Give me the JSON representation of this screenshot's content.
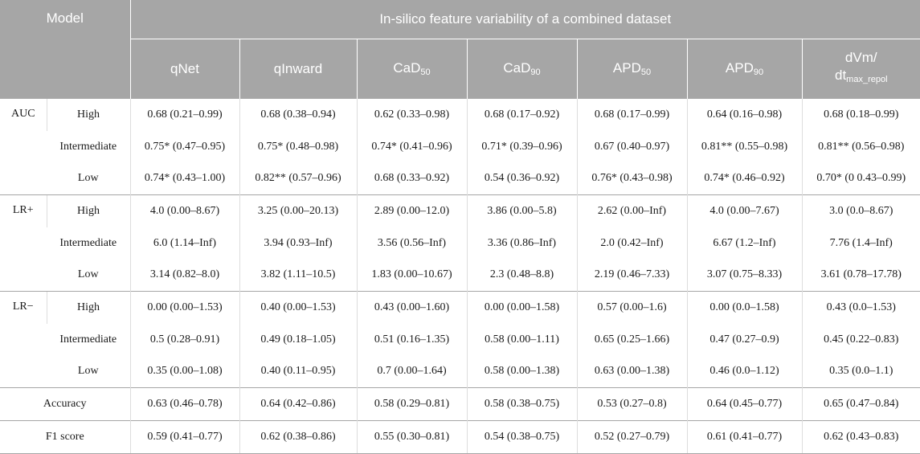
{
  "header": {
    "model": "Model",
    "title": "In-silico feature variability of a combined dataset",
    "columns": [
      {
        "main": "qNet",
        "sub": ""
      },
      {
        "main": "qInward",
        "sub": ""
      },
      {
        "main": "CaD",
        "sub": "50"
      },
      {
        "main": "CaD",
        "sub": "90"
      },
      {
        "main": "APD",
        "sub": "50"
      },
      {
        "main": "APD",
        "sub": "90"
      },
      {
        "main": "dVm/",
        "line2": "dt",
        "sub": "max_repol"
      }
    ]
  },
  "groups": [
    {
      "label": "AUC",
      "rows": [
        {
          "label": "High",
          "cells": [
            "0.68 (0.21–0.99)",
            "0.68 (0.38–0.94)",
            "0.62 (0.33–0.98)",
            "0.68 (0.17–0.92)",
            "0.68 (0.17–0.99)",
            "0.64 (0.16–0.98)",
            "0.68 (0.18–0.99)"
          ]
        },
        {
          "label": "Intermediate",
          "cells": [
            "0.75* (0.47–0.95)",
            "0.75* (0.48–0.98)",
            "0.74* (0.41–0.96)",
            "0.71* (0.39–0.96)",
            "0.67 (0.40–0.97)",
            "0.81** (0.55–0.98)",
            "0.81** (0.56–0.98)"
          ]
        },
        {
          "label": "Low",
          "cells": [
            "0.74* (0.43–1.00)",
            "0.82** (0.57–0.96)",
            "0.68 (0.33–0.92)",
            "0.54 (0.36–0.92)",
            "0.76* (0.43–0.98)",
            "0.74* (0.46–0.92)",
            "0.70* (0 0.43–0.99)"
          ]
        }
      ]
    },
    {
      "label": "LR+",
      "rows": [
        {
          "label": "High",
          "cells": [
            "4.0 (0.00–8.67)",
            "3.25 (0.00–20.13)",
            "2.89 (0.00–12.0)",
            "3.86 (0.00–5.8)",
            "2.62 (0.00–Inf)",
            "4.0 (0.00–7.67)",
            "3.0 (0.0–8.67)"
          ]
        },
        {
          "label": "Intermediate",
          "cells": [
            "6.0 (1.14–Inf)",
            "3.94 (0.93–Inf)",
            "3.56 (0.56–Inf)",
            "3.36 (0.86–Inf)",
            "2.0 (0.42–Inf)",
            "6.67 (1.2–Inf)",
            "7.76 (1.4–Inf)"
          ]
        },
        {
          "label": "Low",
          "cells": [
            "3.14 (0.82–8.0)",
            "3.82 (1.11–10.5)",
            "1.83 (0.00–10.67)",
            "2.3 (0.48–8.8)",
            "2.19 (0.46–7.33)",
            "3.07 (0.75–8.33)",
            "3.61 (0.78–17.78)"
          ]
        }
      ]
    },
    {
      "label": "LR−",
      "rows": [
        {
          "label": "High",
          "cells": [
            "0.00 (0.00–1.53)",
            "0.40 (0.00–1.53)",
            "0.43 (0.00–1.60)",
            "0.00 (0.00–1.58)",
            "0.57 (0.00–1.6)",
            "0.00 (0.0–1.58)",
            "0.43 (0.0–1.53)"
          ]
        },
        {
          "label": "Intermediate",
          "cells": [
            "0.5 (0.28–0.91)",
            "0.49 (0.18–1.05)",
            "0.51 (0.16–1.35)",
            "0.58 (0.00–1.11)",
            "0.65 (0.25–1.66)",
            "0.47 (0.27–0.9)",
            "0.45 (0.22–0.83)"
          ]
        },
        {
          "label": "Low",
          "cells": [
            "0.35 (0.00–1.08)",
            "0.40 (0.11–0.95)",
            "0.7 (0.00–1.64)",
            "0.58 (0.00–1.38)",
            "0.63 (0.00–1.38)",
            "0.46 (0.0–1.12)",
            "0.35 (0.0–1.1)"
          ]
        }
      ]
    }
  ],
  "summary": [
    {
      "label": "Accuracy",
      "cells": [
        "0.63 (0.46–0.78)",
        "0.64 (0.42–0.86)",
        "0.58 (0.29–0.81)",
        "0.58 (0.38–0.75)",
        "0.53 (0.27–0.8)",
        "0.64 (0.45–0.77)",
        "0.65 (0.47–0.84)"
      ]
    },
    {
      "label": "F1 score",
      "cells": [
        "0.59 (0.41–0.77)",
        "0.62 (0.38–0.86)",
        "0.55 (0.30–0.81)",
        "0.54 (0.38–0.75)",
        "0.52 (0.27–0.79)",
        "0.61 (0.41–0.77)",
        "0.62 (0.43–0.83)"
      ]
    }
  ]
}
